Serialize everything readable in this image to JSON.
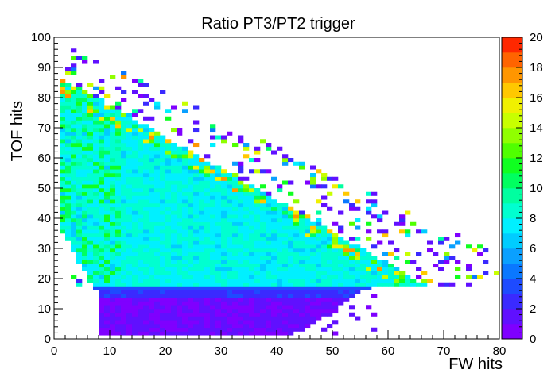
{
  "chart_data": {
    "type": "heatmap",
    "title": "Ratio PT3/PT2 trigger",
    "xlabel": "FW hits",
    "ylabel": "TOF hits",
    "xlim": [
      0,
      80
    ],
    "ylim": [
      0,
      100
    ],
    "x_ticks": [
      "0",
      "10",
      "20",
      "30",
      "40",
      "50",
      "60",
      "70",
      "80"
    ],
    "y_ticks": [
      "0",
      "10",
      "20",
      "30",
      "40",
      "50",
      "60",
      "70",
      "80",
      "90",
      "100"
    ],
    "bin_width": 1,
    "bin_height": 1.25,
    "colorbar": {
      "zlim": [
        0,
        20
      ],
      "ticks": [
        "0",
        "2",
        "4",
        "6",
        "8",
        "10",
        "12",
        "14",
        "16",
        "18",
        "20"
      ],
      "colors": [
        "#7f00ff",
        "#6010ff",
        "#3a2aff",
        "#1e4bff",
        "#0a78ff",
        "#0aa0ff",
        "#00ccff",
        "#00f0ff",
        "#00ffd0",
        "#00ffa0",
        "#00ff60",
        "#10ff20",
        "#50ff00",
        "#90ff00",
        "#c8ff00",
        "#f0f000",
        "#ffc800",
        "#ff9600",
        "#ff6400",
        "#ff2800"
      ]
    },
    "regions": {
      "dense_low_band": {
        "z_approx": 1,
        "y_range": [
          0,
          16
        ],
        "x_range": [
          8,
          55
        ]
      },
      "transition_band": {
        "z_approx": 3,
        "y_range": [
          16,
          18
        ]
      },
      "main_body": {
        "z_approx": 7
      },
      "hot_spots_z_approx": 17
    },
    "grid": false,
    "legend": "colorbar-right"
  }
}
